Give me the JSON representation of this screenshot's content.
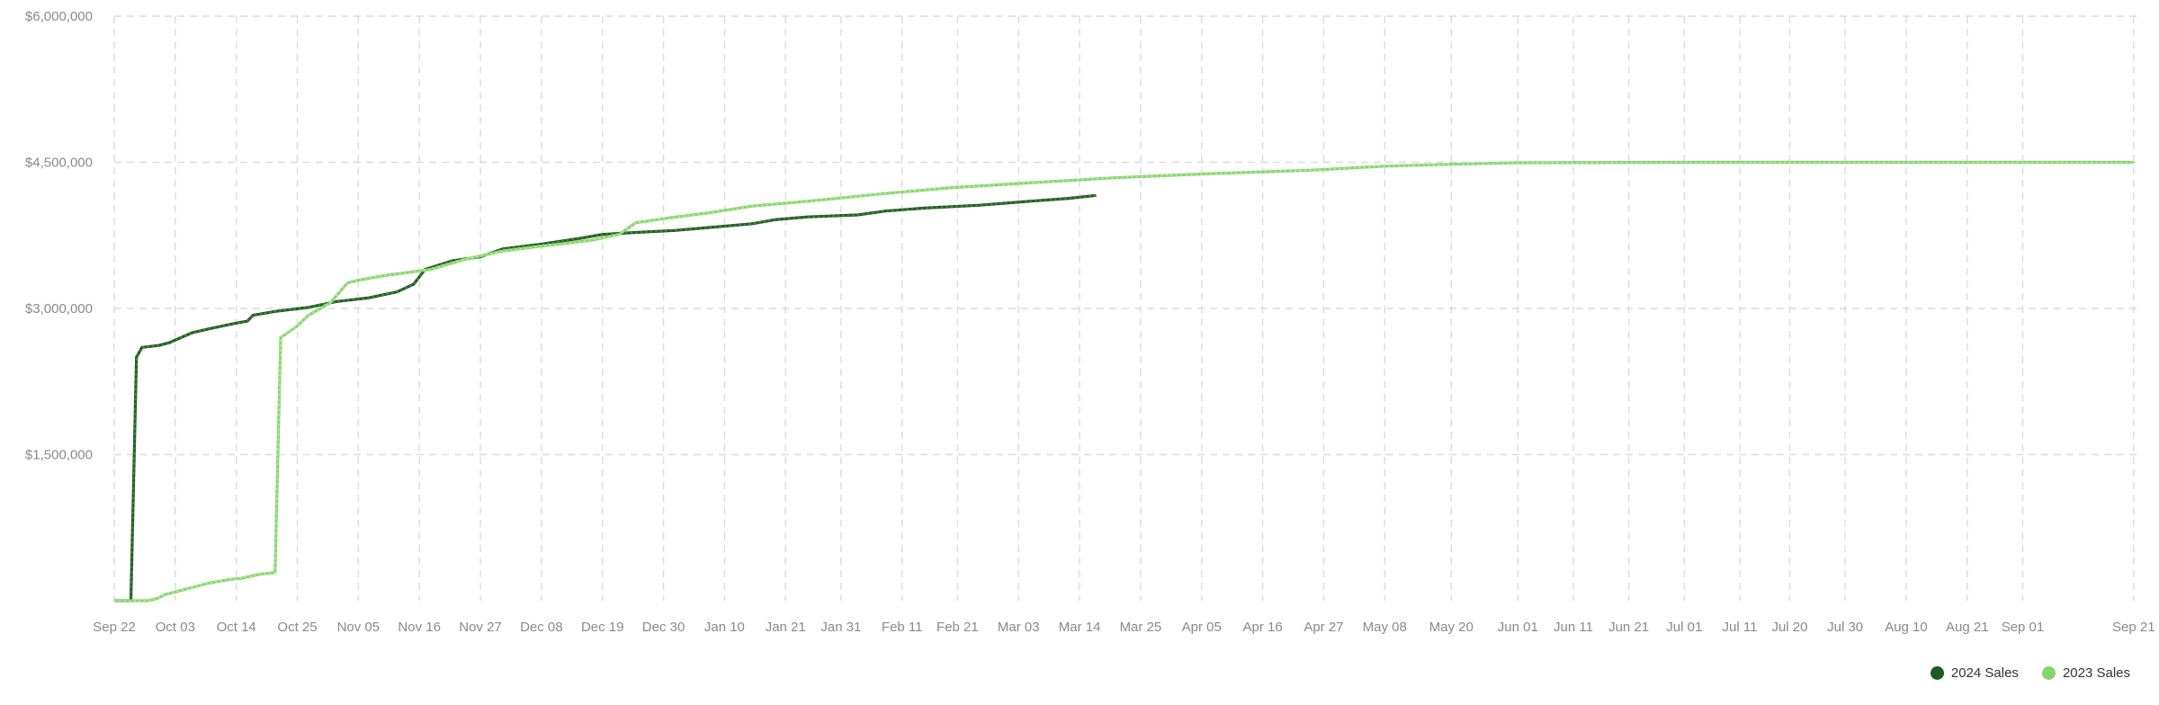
{
  "chart_data": {
    "type": "line",
    "title": "",
    "xlabel": "",
    "ylabel": "",
    "y_ticks": [
      {
        "value": 1500000,
        "label": "$1,500,000"
      },
      {
        "value": 3000000,
        "label": "$3,000,000"
      },
      {
        "value": 4500000,
        "label": "$4,500,000"
      },
      {
        "value": 6000000,
        "label": "$6,000,000"
      }
    ],
    "ylim": [
      0,
      6000000
    ],
    "x_range": [
      "Sep 22",
      "Sep 22 (next year)"
    ],
    "x_ticks": [
      "Sep 22",
      "Oct 03",
      "Oct 14",
      "Oct 25",
      "Nov 05",
      "Nov 16",
      "Nov 27",
      "Dec 08",
      "Dec 19",
      "Dec 30",
      "Jan 10",
      "Jan 21",
      "Jan 31",
      "Feb 11",
      "Feb 21",
      "Mar 03",
      "Mar 14",
      "Mar 25",
      "Apr 05",
      "Apr 16",
      "Apr 27",
      "May 08",
      "May 20",
      "Jun 01",
      "Jun 11",
      "Jun 21",
      "Jul 01",
      "Jul 11",
      "Jul 20",
      "Jul 30",
      "Aug 10",
      "Aug 21",
      "Sep 01",
      "Sep 21"
    ],
    "grid": true,
    "legend_position": "bottom-right",
    "series": [
      {
        "name": "2024 Sales",
        "color": "#1f5a1f",
        "points": [
          [
            "Sep 22",
            0
          ],
          [
            "Sep 25",
            0
          ],
          [
            "Sep 26",
            2500000
          ],
          [
            "Sep 27",
            2600000
          ],
          [
            "Sep 30",
            2620000
          ],
          [
            "Oct 02",
            2650000
          ],
          [
            "Oct 06",
            2750000
          ],
          [
            "Oct 09",
            2790000
          ],
          [
            "Oct 14",
            2850000
          ],
          [
            "Oct 16",
            2870000
          ],
          [
            "Oct 17",
            2930000
          ],
          [
            "Oct 21",
            2970000
          ],
          [
            "Oct 27",
            3010000
          ],
          [
            "Nov 01",
            3070000
          ],
          [
            "Nov 07",
            3110000
          ],
          [
            "Nov 12",
            3170000
          ],
          [
            "Nov 15",
            3250000
          ],
          [
            "Nov 17",
            3400000
          ],
          [
            "Nov 22",
            3490000
          ],
          [
            "Nov 27",
            3530000
          ],
          [
            "Dec 01",
            3610000
          ],
          [
            "Dec 08",
            3660000
          ],
          [
            "Dec 15",
            3720000
          ],
          [
            "Dec 19",
            3760000
          ],
          [
            "Dec 25",
            3780000
          ],
          [
            "Jan 01",
            3800000
          ],
          [
            "Jan 07",
            3830000
          ],
          [
            "Jan 15",
            3870000
          ],
          [
            "Jan 19",
            3910000
          ],
          [
            "Jan 25",
            3940000
          ],
          [
            "Feb 03",
            3960000
          ],
          [
            "Feb 08",
            4000000
          ],
          [
            "Feb 15",
            4030000
          ],
          [
            "Feb 25",
            4060000
          ],
          [
            "Mar 05",
            4100000
          ],
          [
            "Mar 12",
            4130000
          ],
          [
            "Mar 17",
            4160000
          ]
        ]
      },
      {
        "name": "2023 Sales",
        "color": "#86d46c",
        "points": [
          [
            "Sep 22",
            0
          ],
          [
            "Sep 28",
            0
          ],
          [
            "Sep 29",
            10000
          ],
          [
            "Sep 30",
            30000
          ],
          [
            "Oct 01",
            60000
          ],
          [
            "Oct 03",
            90000
          ],
          [
            "Oct 05",
            120000
          ],
          [
            "Oct 09",
            180000
          ],
          [
            "Oct 13",
            220000
          ],
          [
            "Oct 15",
            230000
          ],
          [
            "Oct 18",
            270000
          ],
          [
            "Oct 21",
            290000
          ],
          [
            "Oct 22",
            2700000
          ],
          [
            "Oct 25",
            2820000
          ],
          [
            "Oct 27",
            2930000
          ],
          [
            "Oct 31",
            3060000
          ],
          [
            "Nov 03",
            3260000
          ],
          [
            "Nov 05",
            3290000
          ],
          [
            "Nov 10",
            3340000
          ],
          [
            "Nov 18",
            3400000
          ],
          [
            "Nov 24",
            3500000
          ],
          [
            "Dec 01",
            3590000
          ],
          [
            "Dec 08",
            3640000
          ],
          [
            "Dec 17",
            3700000
          ],
          [
            "Dec 22",
            3760000
          ],
          [
            "Dec 25",
            3880000
          ],
          [
            "Dec 31",
            3930000
          ],
          [
            "Jan 07",
            3980000
          ],
          [
            "Jan 15",
            4050000
          ],
          [
            "Jan 25",
            4100000
          ],
          [
            "Feb 08",
            4180000
          ],
          [
            "Feb 20",
            4240000
          ],
          [
            "Mar 05",
            4290000
          ],
          [
            "Mar 20",
            4340000
          ],
          [
            "Apr 05",
            4380000
          ],
          [
            "Apr 25",
            4420000
          ],
          [
            "May 08",
            4460000
          ],
          [
            "May 20",
            4480000
          ],
          [
            "Jun 01",
            4495000
          ],
          [
            "Jul 01",
            4500000
          ],
          [
            "Aug 10",
            4500000
          ],
          [
            "Sep 21",
            4500000
          ]
        ]
      }
    ]
  },
  "legend": {
    "items": [
      {
        "label": "2024 Sales",
        "color": "#1f5a1f"
      },
      {
        "label": "2023 Sales",
        "color": "#86d46c"
      }
    ]
  }
}
